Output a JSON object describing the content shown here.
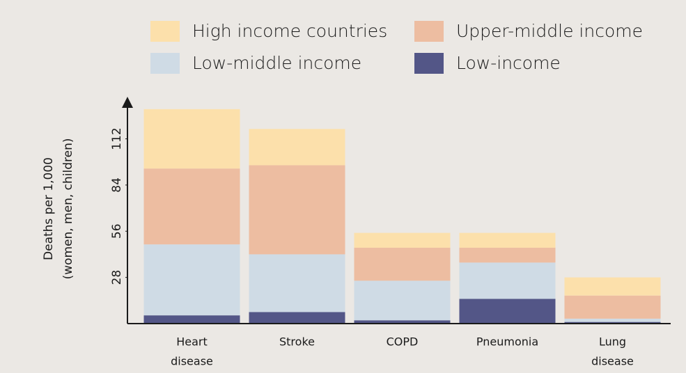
{
  "chart_data": {
    "type": "stacked_bar",
    "ylabel": [
      "Deaths per 1,000",
      "(women, men, children)"
    ],
    "categories": [
      [
        "Heart",
        "disease"
      ],
      [
        "Stroke"
      ],
      [
        "COPD"
      ],
      [
        "Pneumonia"
      ],
      [
        "Lung",
        "disease"
      ]
    ],
    "series": [
      {
        "name": "Low-income",
        "color": "#535687",
        "values": [
          5,
          7,
          2,
          15,
          1
        ]
      },
      {
        "name": "Low-middle income",
        "color": "#cfdbe5",
        "values": [
          43,
          35,
          24,
          22,
          2
        ]
      },
      {
        "name": "Upper-middle income",
        "color": "#edbda1",
        "values": [
          46,
          54,
          20,
          9,
          14
        ]
      },
      {
        "name": "High income countries",
        "color": "#fce0ab",
        "values": [
          36,
          22,
          9,
          9,
          11
        ]
      }
    ],
    "ylim": [
      0,
      135
    ],
    "yticks": [
      28,
      56,
      84,
      112
    ],
    "grid": false
  }
}
